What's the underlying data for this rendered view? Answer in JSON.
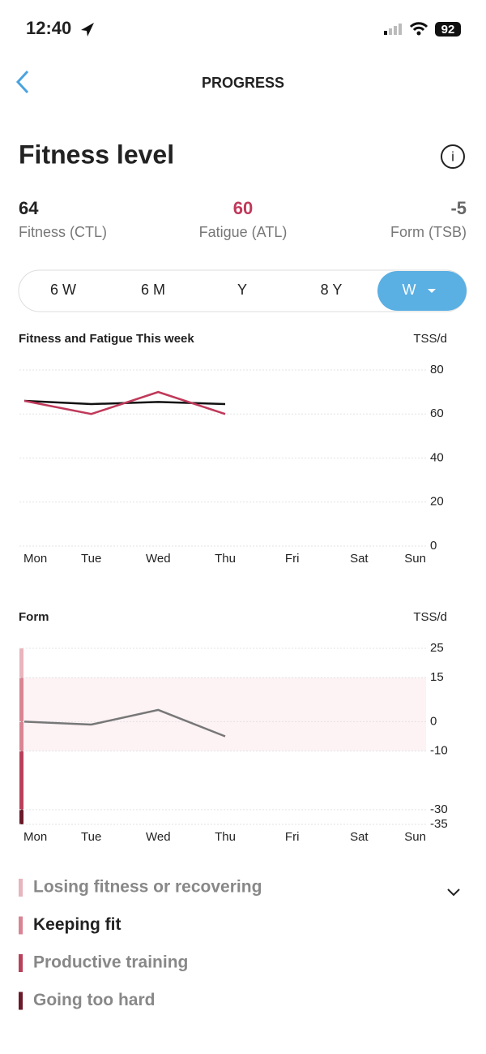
{
  "status_bar": {
    "time": "12:40",
    "battery": 92
  },
  "header": {
    "title": "PROGRESS"
  },
  "section_title": "Fitness level",
  "metrics": [
    {
      "value": 64,
      "label": "Fitness (CTL)",
      "color": "#222222"
    },
    {
      "value": 60,
      "label": "Fatigue (ATL)",
      "color": "#c0395a"
    },
    {
      "value": -5,
      "label": "Form (TSB)",
      "color": "#666666"
    }
  ],
  "tabs": {
    "items": [
      "6 W",
      "6 M",
      "Y",
      "8 Y",
      "W"
    ],
    "active": 4
  },
  "chart_data": [
    {
      "type": "line",
      "title": "Fitness and Fatigue This week",
      "y_label": "TSS/d",
      "categories": [
        "Mon",
        "Tue",
        "Wed",
        "Thu",
        "Fri",
        "Sat",
        "Sun"
      ],
      "series": [
        {
          "color": "#111111",
          "values": [
            66,
            64.5,
            65.5,
            64.5,
            null,
            null,
            null
          ]
        },
        {
          "color": "#c0395a",
          "values": [
            66,
            60,
            70,
            60,
            null,
            null,
            null
          ]
        }
      ],
      "ylim": [
        0,
        80
      ],
      "yticks": [
        0,
        20,
        40,
        60,
        80
      ],
      "grid": true
    },
    {
      "type": "line",
      "title": "Form",
      "y_label": "TSS/d",
      "categories": [
        "Mon",
        "Tue",
        "Wed",
        "Thu",
        "Fri",
        "Sat",
        "Sun"
      ],
      "series": [
        {
          "color": "#777777",
          "values": [
            0,
            -1,
            4,
            -5,
            null,
            null,
            null
          ]
        }
      ],
      "ylim": [
        -35,
        25
      ],
      "yticks": [
        25,
        15,
        0,
        -10,
        -30,
        -35
      ],
      "grid": true,
      "zones": [
        {
          "name": "Losing fitness or recovering",
          "color": "#e8b4bd",
          "range": [
            15,
            25
          ]
        },
        {
          "name": "Keeping fit",
          "color": "#d98494",
          "range": [
            -10,
            15
          ]
        },
        {
          "name": "Productive training",
          "color": "#b8405a",
          "range": [
            -30,
            -10
          ]
        },
        {
          "name": "Going too hard",
          "color": "#6b1a2a",
          "range": [
            -35,
            -30
          ]
        }
      ],
      "active_zone": 1
    }
  ]
}
